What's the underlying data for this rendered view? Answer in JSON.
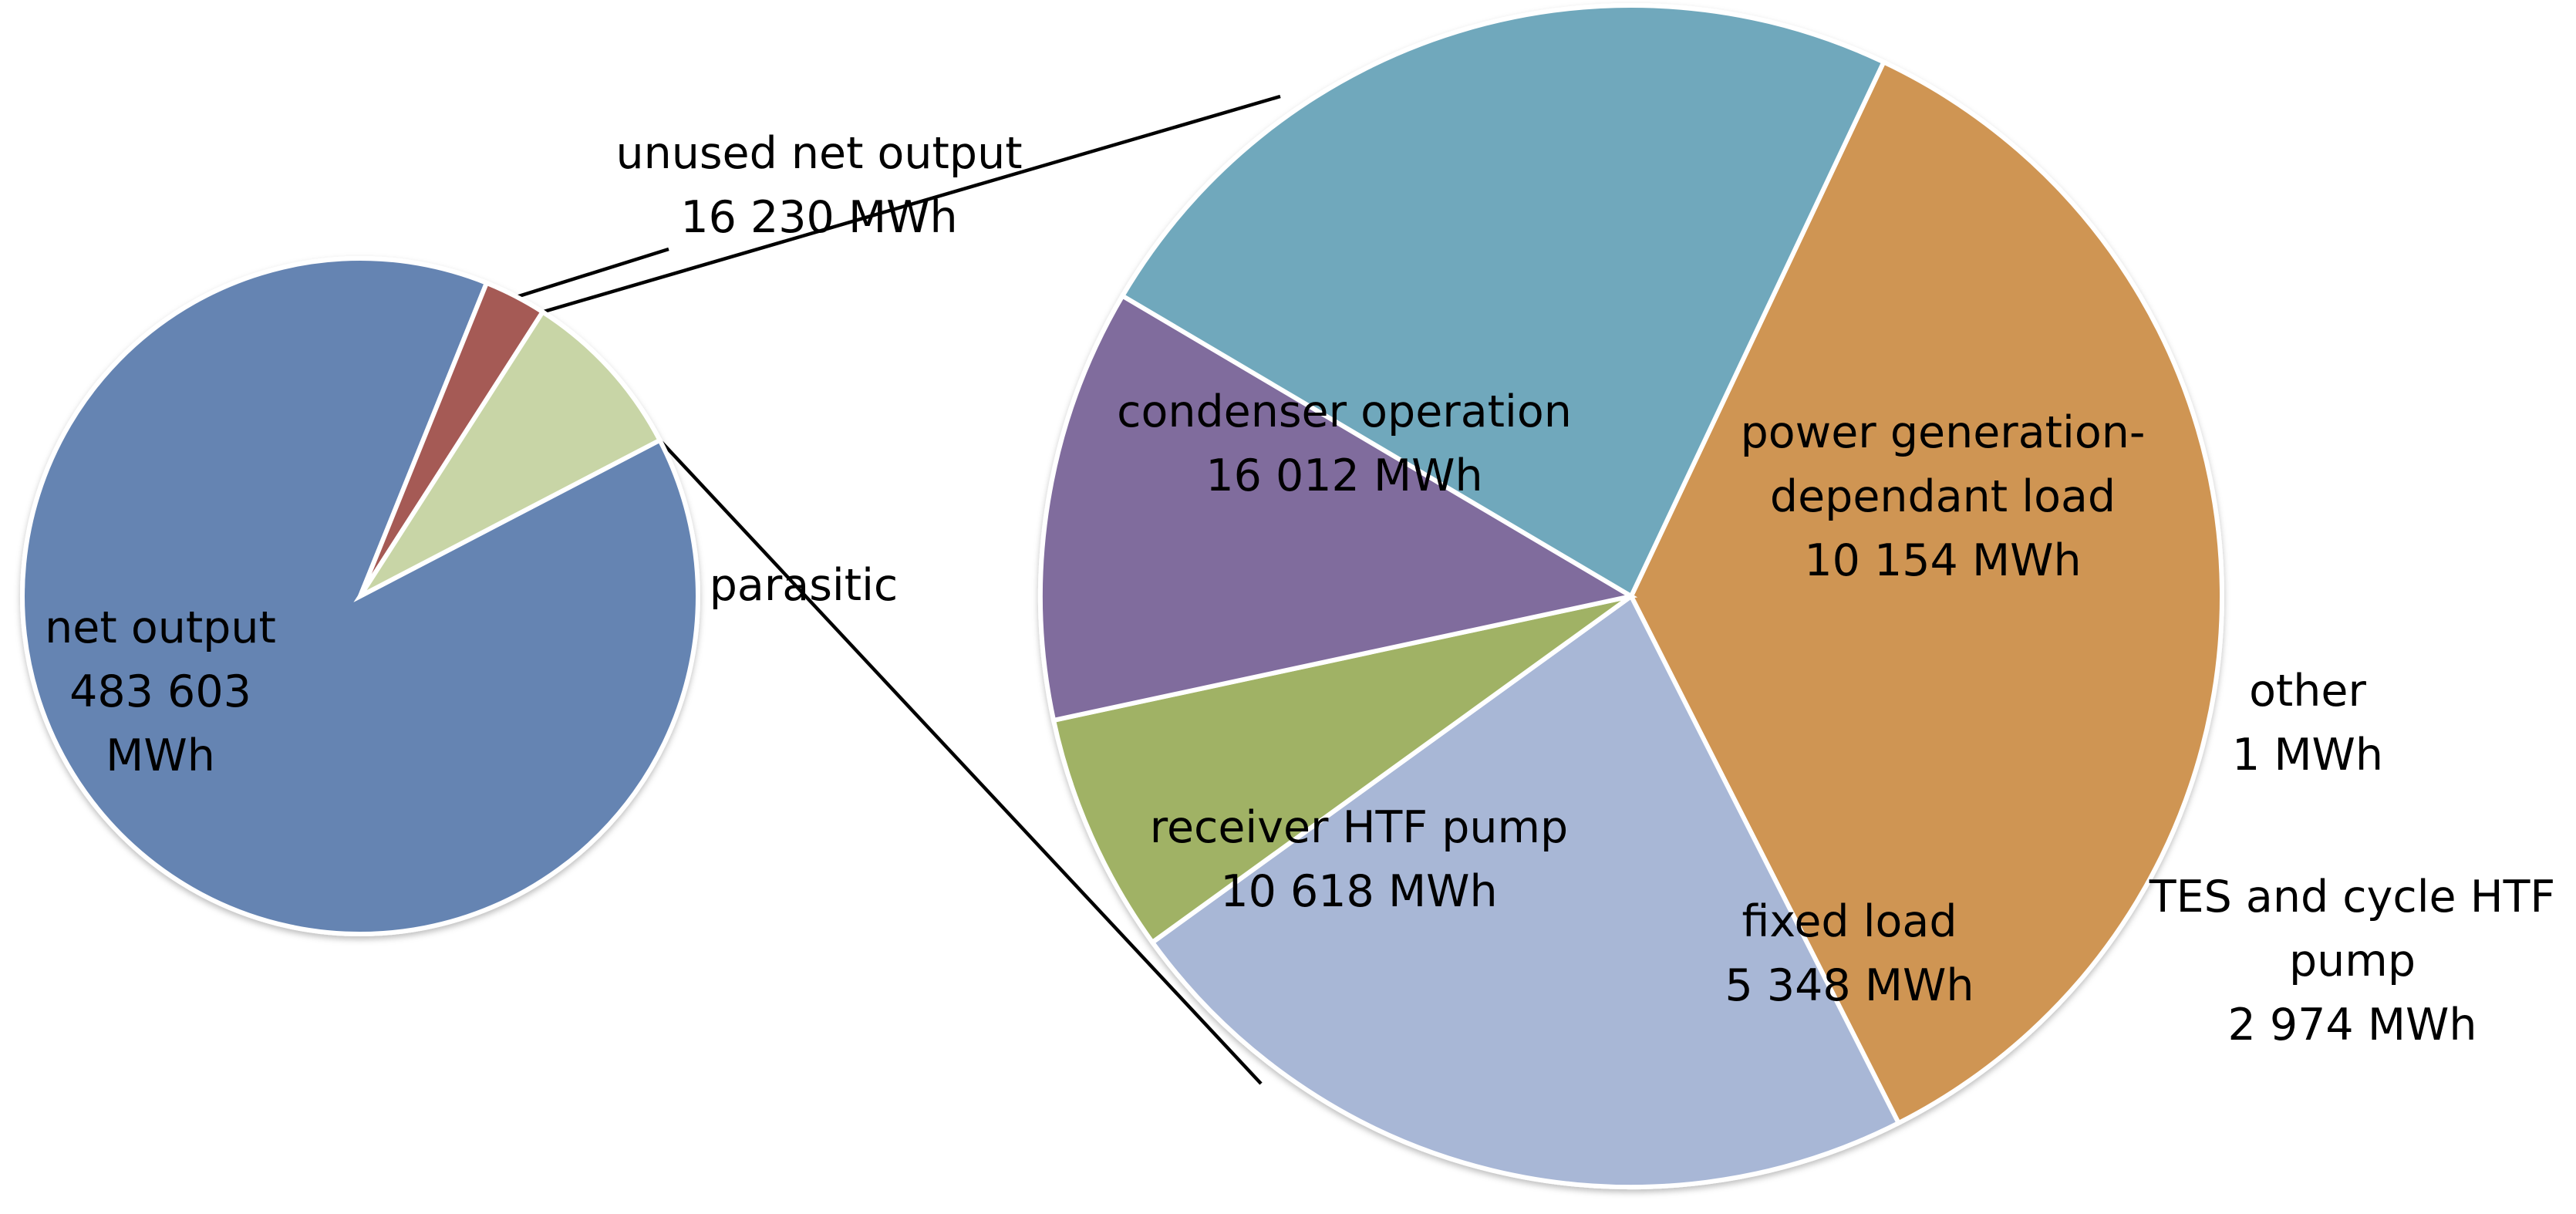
{
  "chart_data": [
    {
      "type": "pie",
      "title": "",
      "slices": [
        {
          "label": "net output",
          "value_text": "483 603 MWh",
          "value": 483603,
          "color": "#6584b2",
          "label_lines": [
            "net output",
            "483 603",
            "MWh"
          ]
        },
        {
          "label": "unused net output",
          "value_text": "16 230 MWh",
          "value": 16230,
          "color": "#a55a55",
          "label_lines": [
            "unused net output",
            "16 230 MWh"
          ]
        },
        {
          "label": "parasitic",
          "value_text": "",
          "value": 45107,
          "color": "#c8d5a6",
          "label_lines": [
            "parasitic"
          ]
        }
      ]
    },
    {
      "type": "pie",
      "title": "",
      "breakdown_of": "parasitic",
      "slices": [
        {
          "label": "condenser operation",
          "value_text": "16 012 MWh",
          "value": 16012,
          "color": "#cf9553",
          "label_lines": [
            "condenser operation",
            "16 012 MWh"
          ]
        },
        {
          "label": "power generation-dependant load",
          "value_text": "10 154 MWh",
          "value": 10154,
          "color": "#a8b7d6",
          "label_lines": [
            "power generation-",
            "dependant load",
            "10 154 MWh"
          ]
        },
        {
          "label": "other",
          "value_text": "1 MWh",
          "value": 1,
          "color": "#ffffff",
          "label_lines": [
            "other",
            "1 MWh"
          ]
        },
        {
          "label": "TES and cycle HTF pump",
          "value_text": "2 974 MWh",
          "value": 2974,
          "color": "#a0b265",
          "label_lines": [
            "TES and cycle HTF",
            "pump",
            "2 974 MWh"
          ]
        },
        {
          "label": "fixed load",
          "value_text": "5 348 MWh",
          "value": 5348,
          "color": "#806c9d",
          "label_lines": [
            "fixed load",
            "5 348 MWh"
          ]
        },
        {
          "label": "receiver HTF pump",
          "value_text": "10 618 MWh",
          "value": 10618,
          "color": "#70a8bc",
          "label_lines": [
            "receiver HTF pump",
            "10 618 MWh"
          ]
        }
      ]
    }
  ]
}
